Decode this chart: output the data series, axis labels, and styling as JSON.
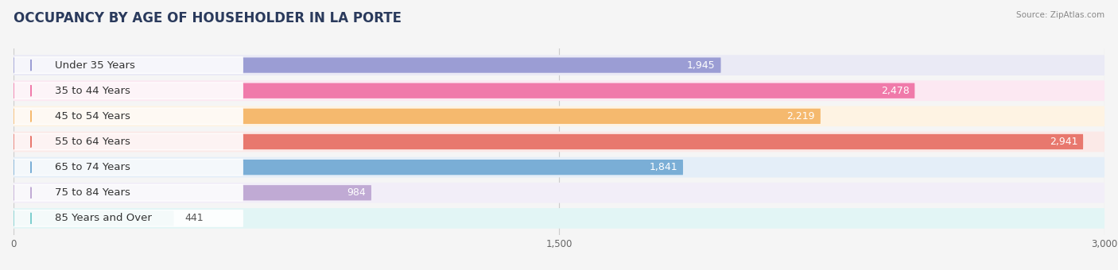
{
  "title": "OCCUPANCY BY AGE OF HOUSEHOLDER IN LA PORTE",
  "source": "Source: ZipAtlas.com",
  "categories": [
    "Under 35 Years",
    "35 to 44 Years",
    "45 to 54 Years",
    "55 to 64 Years",
    "65 to 74 Years",
    "75 to 84 Years",
    "85 Years and Over"
  ],
  "values": [
    1945,
    2478,
    2219,
    2941,
    1841,
    984,
    441
  ],
  "bar_colors": [
    "#9b9dd4",
    "#f07aaa",
    "#f5b96e",
    "#e8786e",
    "#7aaed6",
    "#c0aad4",
    "#7ecece"
  ],
  "bar_bg_colors": [
    "#eaeaf5",
    "#fce8f2",
    "#fef3e3",
    "#fbe9e7",
    "#e4eef8",
    "#f2eef8",
    "#e2f5f5"
  ],
  "dot_colors": [
    "#9b9dd4",
    "#f07aaa",
    "#f5b96e",
    "#e8786e",
    "#7aaed6",
    "#c0aad4",
    "#7ecece"
  ],
  "xlim": [
    0,
    3000
  ],
  "xticks": [
    0,
    1500,
    3000
  ],
  "xtick_labels": [
    "0",
    "1,500",
    "3,000"
  ],
  "title_fontsize": 12,
  "label_fontsize": 9.5,
  "value_fontsize": 9,
  "background_color": "#f5f5f5"
}
